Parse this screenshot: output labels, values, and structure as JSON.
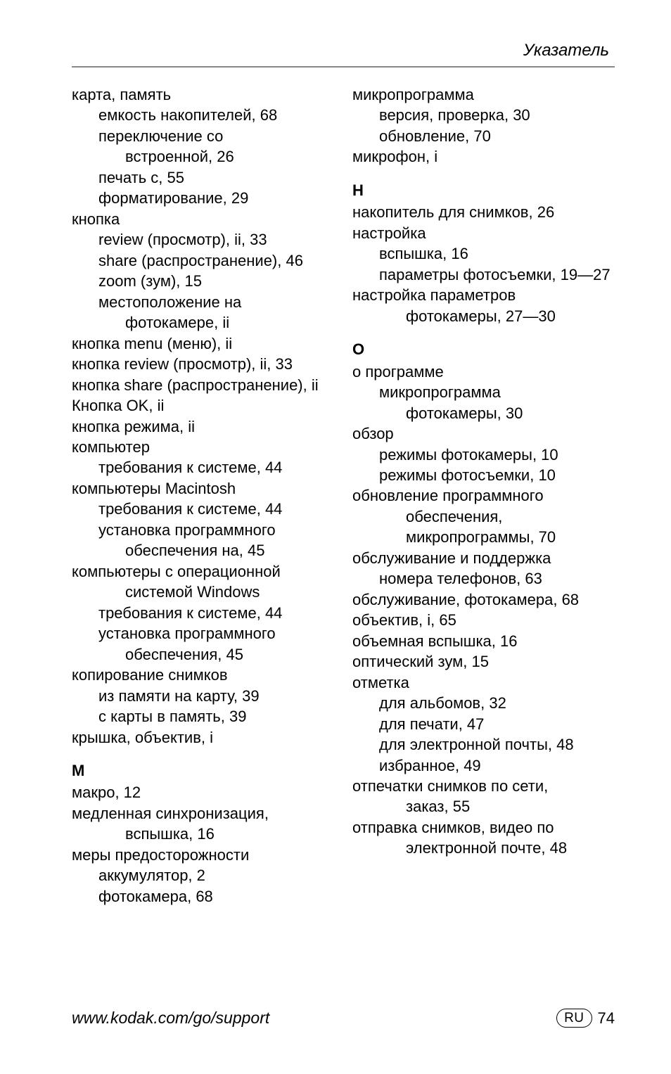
{
  "header": {
    "title": "Указатель"
  },
  "footer": {
    "url": "www.kodak.com/go/support",
    "badge": "RU",
    "page": "74"
  },
  "left": [
    {
      "cls": "entry",
      "t": "карта, память"
    },
    {
      "cls": "entry i1",
      "t": "емкость накопителей, 68"
    },
    {
      "cls": "entry i1",
      "t": "переключение со"
    },
    {
      "cls": "entry i2",
      "t": "встроенной, 26"
    },
    {
      "cls": "entry i1",
      "t": "печать с, 55"
    },
    {
      "cls": "entry i1",
      "t": "форматирование, 29"
    },
    {
      "cls": "entry",
      "t": "кнопка"
    },
    {
      "cls": "entry i1",
      "t": "review (просмотр), ii, 33"
    },
    {
      "cls": "entry i1",
      "t": "share (распространение), 46"
    },
    {
      "cls": "entry i1",
      "t": "zoom (зум), 15"
    },
    {
      "cls": "entry i1",
      "t": "местоположение на"
    },
    {
      "cls": "entry i2",
      "t": "фотокамере, ii"
    },
    {
      "cls": "entry",
      "t": "кнопка menu (меню), ii"
    },
    {
      "cls": "entry",
      "t": "кнопка review (просмотр), ii, 33"
    },
    {
      "cls": "entry",
      "t": "кнопка share (распространение), ii"
    },
    {
      "cls": "entry",
      "t": "Кнопка OK, ii"
    },
    {
      "cls": "entry",
      "t": "кнопка режима, ii"
    },
    {
      "cls": "entry",
      "t": "компьютер"
    },
    {
      "cls": "entry i1",
      "t": "требования к системе, 44"
    },
    {
      "cls": "entry",
      "t": "компьютеры Macintosh"
    },
    {
      "cls": "entry i1",
      "t": "требования к системе, 44"
    },
    {
      "cls": "entry i1",
      "t": "установка программного"
    },
    {
      "cls": "entry i2",
      "t": "обеспечения на, 45"
    },
    {
      "cls": "entry",
      "t": "компьютеры с операционной"
    },
    {
      "cls": "entry i2",
      "t": "системой Windows"
    },
    {
      "cls": "entry i1",
      "t": "требования к системе, 44"
    },
    {
      "cls": "entry i1",
      "t": "установка программного"
    },
    {
      "cls": "entry i2",
      "t": "обеспечения, 45"
    },
    {
      "cls": "entry",
      "t": "копирование снимков"
    },
    {
      "cls": "entry i1",
      "t": "из памяти на карту, 39"
    },
    {
      "cls": "entry i1",
      "t": "с карты в память, 39"
    },
    {
      "cls": "entry",
      "t": "крышка, объектив, i"
    },
    {
      "cls": "sec",
      "t": "М"
    },
    {
      "cls": "entry",
      "t": "макро, 12"
    },
    {
      "cls": "entry",
      "t": "медленная синхронизация,"
    },
    {
      "cls": "entry i2",
      "t": "вспышка, 16"
    },
    {
      "cls": "entry",
      "t": "меры предосторожности"
    },
    {
      "cls": "entry i1",
      "t": "аккумулятор, 2"
    },
    {
      "cls": "entry i1",
      "t": "фотокамера, 68"
    }
  ],
  "right": [
    {
      "cls": "entry",
      "t": "микропрограмма"
    },
    {
      "cls": "entry i1",
      "t": "версия, проверка, 30"
    },
    {
      "cls": "entry i1",
      "t": "обновление, 70"
    },
    {
      "cls": "entry",
      "t": "микрофон, i"
    },
    {
      "cls": "sec",
      "t": "Н"
    },
    {
      "cls": "entry",
      "t": "накопитель для снимков, 26"
    },
    {
      "cls": "entry",
      "t": "настройка"
    },
    {
      "cls": "entry i1",
      "t": "вспышка, 16"
    },
    {
      "cls": "entry i1",
      "t": "параметры фотосъемки, 19—27"
    },
    {
      "cls": "entry",
      "t": "настройка параметров"
    },
    {
      "cls": "entry i2",
      "t": "фотокамеры, 27—30"
    },
    {
      "cls": "sec",
      "t": "О"
    },
    {
      "cls": "entry",
      "t": "о программе"
    },
    {
      "cls": "entry i1",
      "t": "микропрограмма"
    },
    {
      "cls": "entry i2",
      "t": "фотокамеры, 30"
    },
    {
      "cls": "entry",
      "t": "обзор"
    },
    {
      "cls": "entry i1",
      "t": "режимы фотокамеры, 10"
    },
    {
      "cls": "entry i1",
      "t": "режимы фотосъемки, 10"
    },
    {
      "cls": "entry",
      "t": "обновление программного"
    },
    {
      "cls": "entry i2",
      "t": "обеспечения,"
    },
    {
      "cls": "entry i2",
      "t": "микропрограммы, 70"
    },
    {
      "cls": "entry",
      "t": "обслуживание и поддержка"
    },
    {
      "cls": "entry i1",
      "t": "номера телефонов, 63"
    },
    {
      "cls": "entry",
      "t": "обслуживание, фотокамера, 68"
    },
    {
      "cls": "entry",
      "t": "объектив, i, 65"
    },
    {
      "cls": "entry",
      "t": "объемная вспышка, 16"
    },
    {
      "cls": "entry",
      "t": "оптический зум, 15"
    },
    {
      "cls": "entry",
      "t": "отметка"
    },
    {
      "cls": "entry i1",
      "t": "для альбомов, 32"
    },
    {
      "cls": "entry i1",
      "t": "для печати, 47"
    },
    {
      "cls": "entry i1",
      "t": "для электронной почты, 48"
    },
    {
      "cls": "entry i1",
      "t": "избранное, 49"
    },
    {
      "cls": "entry",
      "t": "отпечатки снимков по сети,"
    },
    {
      "cls": "entry i2",
      "t": "заказ, 55"
    },
    {
      "cls": "entry",
      "t": "отправка снимков, видео по"
    },
    {
      "cls": "entry i2",
      "t": "электронной почте, 48"
    }
  ]
}
